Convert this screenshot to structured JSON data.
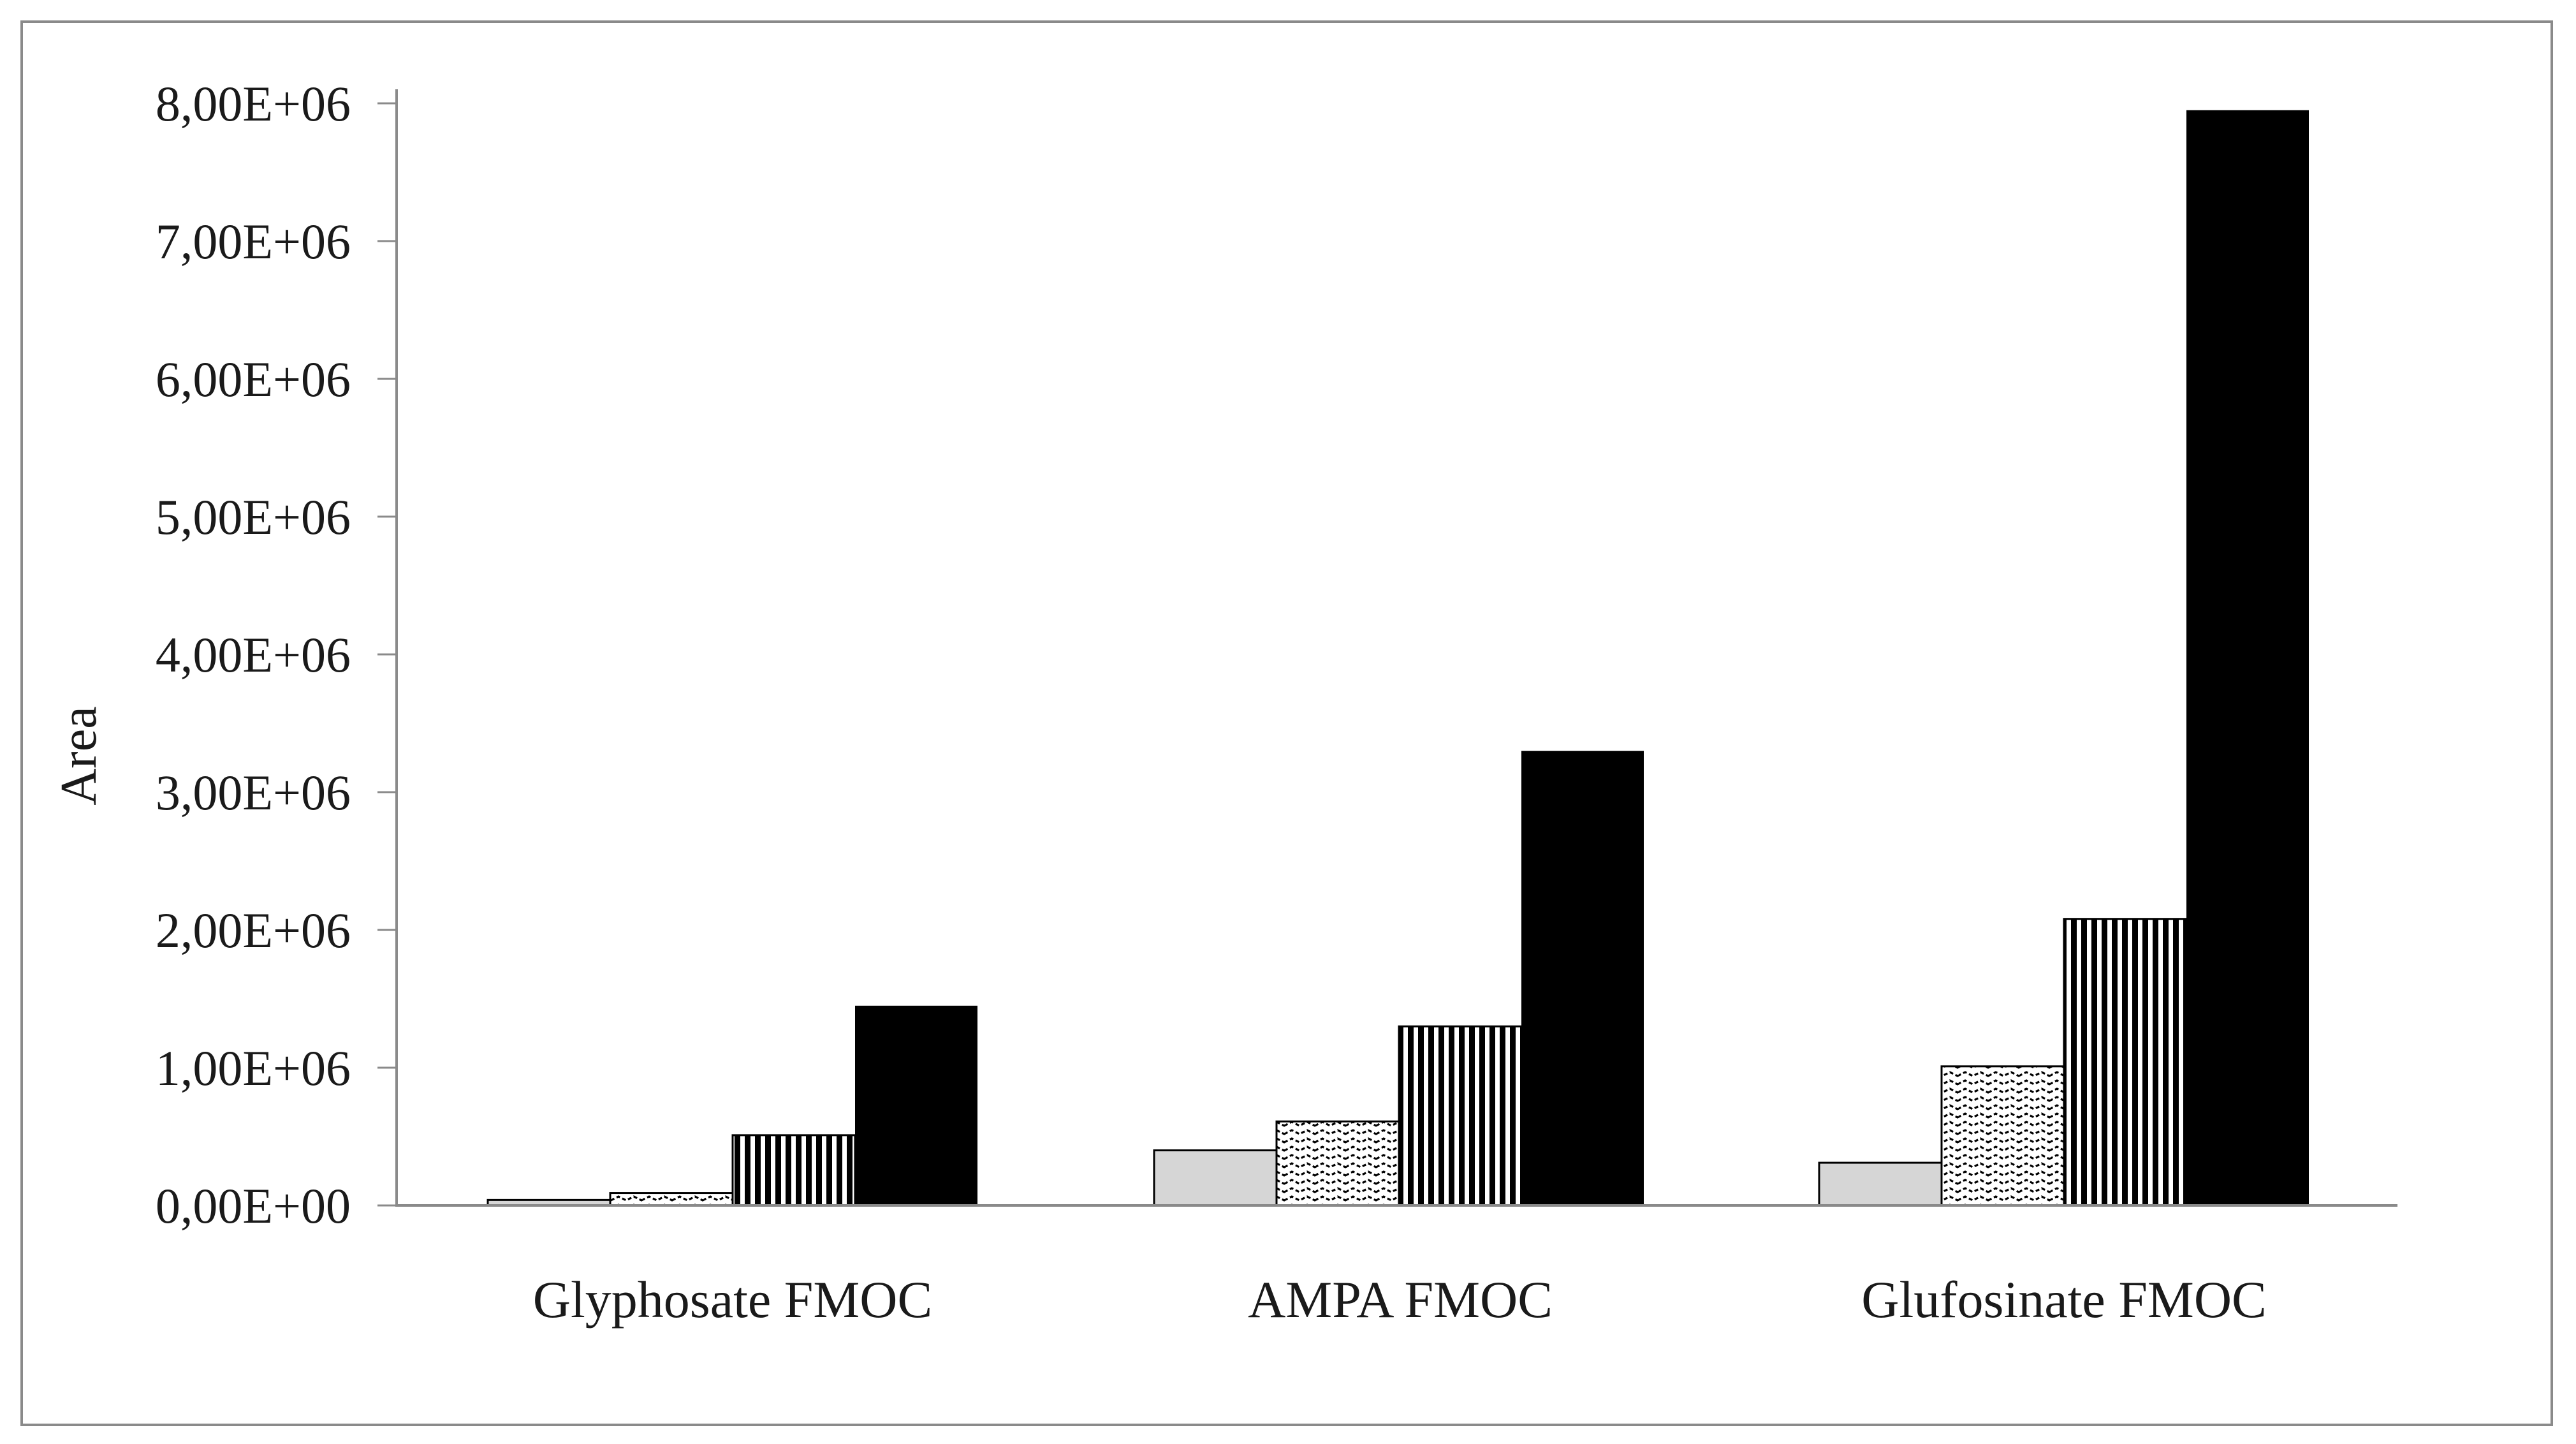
{
  "chart_data": {
    "type": "bar",
    "title": "",
    "xlabel": "",
    "ylabel": "Area",
    "ylim": [
      0,
      8000000
    ],
    "grid": false,
    "legend": "none",
    "y_tick_labels": [
      "0,00E+00",
      "1,00E+06",
      "2,00E+06",
      "3,00E+06",
      "4,00E+06",
      "5,00E+06",
      "6,00E+06",
      "7,00E+06",
      "8,00E+06"
    ],
    "y_tick_values": [
      0,
      1000000,
      2000000,
      3000000,
      4000000,
      5000000,
      6000000,
      7000000,
      8000000
    ],
    "categories": [
      "Glyphosate FMOC",
      "AMPA FMOC",
      "Glufosinate FMOC"
    ],
    "series": [
      {
        "pattern": "solid-light-gray",
        "values": [
          40000,
          400000,
          310000
        ]
      },
      {
        "pattern": "wavy-lines",
        "values": [
          90000,
          610000,
          1010000
        ]
      },
      {
        "pattern": "vertical-stripes",
        "values": [
          510000,
          1300000,
          2080000
        ]
      },
      {
        "pattern": "solid-black",
        "values": [
          1450000,
          3300000,
          7950000
        ]
      }
    ],
    "colors": {
      "bar_light_gray_fill": "#d6d6d6",
      "bar_outline": "#000000",
      "bar_black_fill": "#000000",
      "axis_line": "#8a8a8a",
      "border": "#8a8a8a",
      "text": "#1a1a1a",
      "background": "#ffffff"
    }
  }
}
